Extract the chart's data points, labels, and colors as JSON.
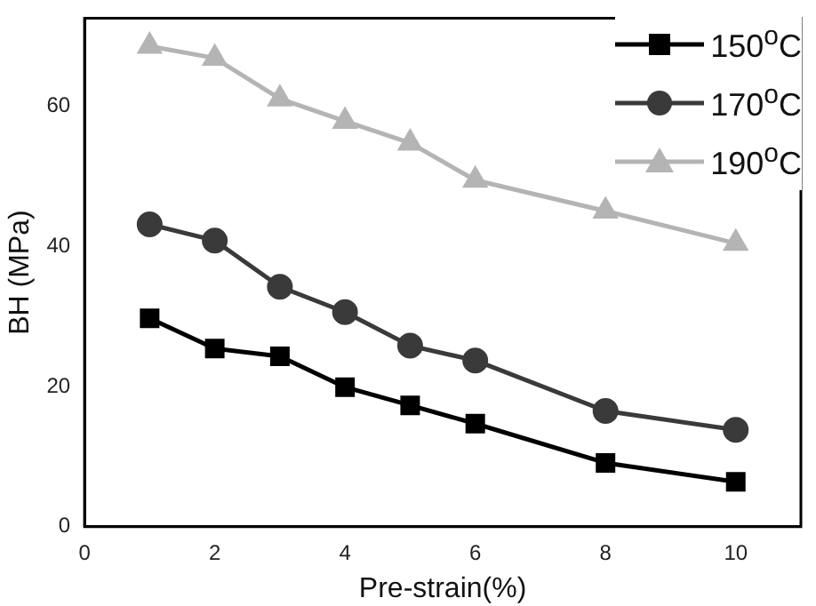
{
  "chart_data": {
    "type": "line",
    "xlabel": "Pre-strain(%)",
    "ylabel": "BH (MPa)",
    "x": [
      1,
      2,
      3,
      4,
      5,
      6,
      8,
      10
    ],
    "series": [
      {
        "name": "150$^{o}$C",
        "color": "#000000",
        "marker": "square",
        "values": [
          29.7,
          25.4,
          24.3,
          19.9,
          17.3,
          14.7,
          9.1,
          6.4
        ]
      },
      {
        "name": "170$^{o}$C",
        "color": "#3a3a3a",
        "marker": "circle",
        "values": [
          43.1,
          40.8,
          34.2,
          30.6,
          25.8,
          23.7,
          16.5,
          13.8
        ]
      },
      {
        "name": "190$^{o}$C",
        "color": "#b4b4b4",
        "marker": "triangle",
        "values": [
          68.5,
          66.8,
          61.0,
          57.8,
          54.7,
          49.4,
          45.0,
          40.4
        ]
      }
    ],
    "xlim": [
      0,
      11
    ],
    "xticks": [
      0,
      2,
      4,
      6,
      8,
      10
    ],
    "ylim": [
      0,
      72.5
    ],
    "yticks": [
      0,
      20,
      40,
      60
    ],
    "grid": false,
    "legend": "top right"
  }
}
